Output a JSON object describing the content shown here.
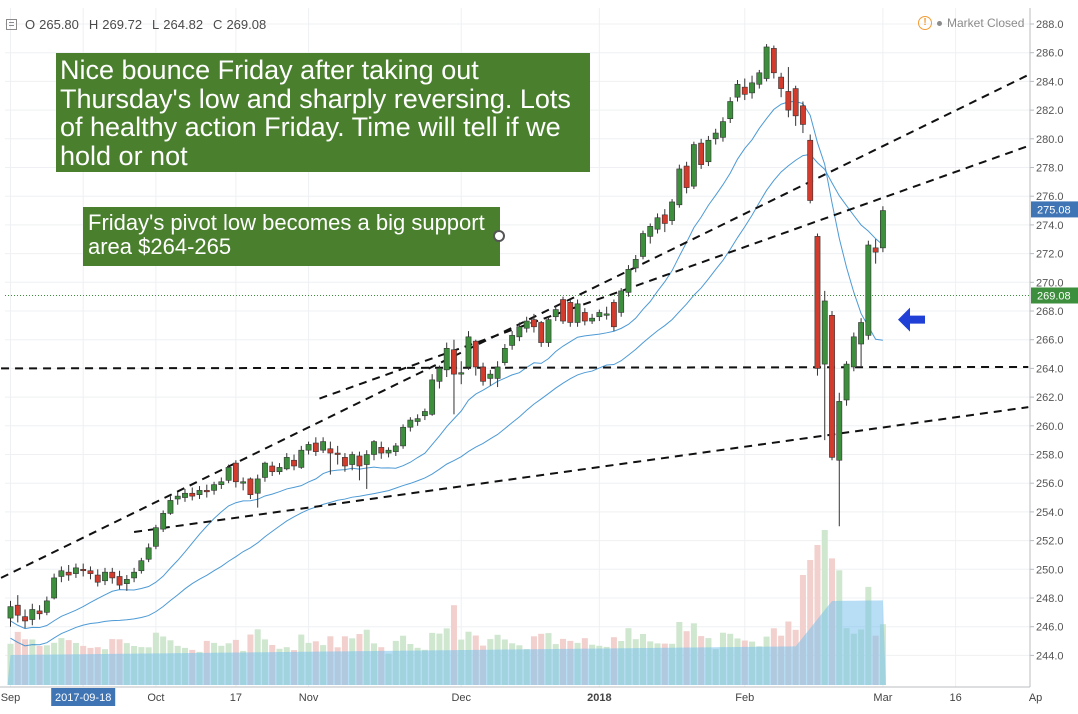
{
  "header": {
    "open_label": "O",
    "open": "265.80",
    "high_label": "H",
    "high": "269.72",
    "low_label": "L",
    "low": "264.82",
    "close_label": "C",
    "close": "269.08",
    "market_status": "Market Closed",
    "status_icon": "warning-icon"
  },
  "annotations": {
    "note1": "Nice bounce Friday after taking out Thursday's low and sharply reversing. Lots of healthy action Friday. Time will tell if we hold or not",
    "note2": "Friday's pivot low becomes a big support area $264-265"
  },
  "colors": {
    "up": "#3d8f3d",
    "down": "#d33b2c",
    "ma": "#3a8fd0",
    "volume_ma": "#7cc3ec",
    "note_bg": "#4a7f2e",
    "price_tag": "#3d8f3d",
    "ma_tag": "#3f74b5",
    "arrow": "#1f3fd6"
  },
  "chart_data": {
    "type": "candlestick",
    "y_axis": {
      "min": 243,
      "max": 288.5,
      "ticks": [
        244,
        246,
        248,
        250,
        252,
        254,
        256,
        258,
        260,
        262,
        264,
        266,
        268,
        270,
        272,
        274,
        276,
        278,
        280,
        282,
        284,
        286,
        288
      ]
    },
    "x_axis": {
      "labels": [
        {
          "label": "Sep",
          "i": 0
        },
        {
          "label": "2017-09-18",
          "i": 10,
          "highlight": true
        },
        {
          "label": "Oct",
          "i": 20
        },
        {
          "label": "17",
          "i": 31
        },
        {
          "label": "Nov",
          "i": 41
        },
        {
          "label": "Dec",
          "i": 62
        },
        {
          "label": "2018",
          "i": 81
        },
        {
          "label": "Feb",
          "i": 101
        },
        {
          "label": "Mar",
          "i": 120
        },
        {
          "label": "16",
          "i": 130
        },
        {
          "label": "Ap",
          "i": 141
        }
      ],
      "n_slots": 143
    },
    "last_price": 269.08,
    "ma_value": 275.08,
    "candles": [
      {
        "o": 246.6,
        "c": 247.4,
        "h": 247.8,
        "l": 246.0
      },
      {
        "o": 247.5,
        "c": 246.8,
        "h": 248.2,
        "l": 246.3
      },
      {
        "o": 246.7,
        "c": 246.4,
        "h": 247.2,
        "l": 245.9
      },
      {
        "o": 246.5,
        "c": 247.2,
        "h": 247.6,
        "l": 246.1
      },
      {
        "o": 247.1,
        "c": 246.9,
        "h": 247.5,
        "l": 246.5
      },
      {
        "o": 247.0,
        "c": 247.8,
        "h": 248.1,
        "l": 246.8
      },
      {
        "o": 248.0,
        "c": 249.4,
        "h": 249.7,
        "l": 247.9
      },
      {
        "o": 249.5,
        "c": 249.9,
        "h": 250.2,
        "l": 249.1
      },
      {
        "o": 249.8,
        "c": 249.6,
        "h": 250.3,
        "l": 249.2
      },
      {
        "o": 249.7,
        "c": 250.1,
        "h": 250.4,
        "l": 249.4
      },
      {
        "o": 250.0,
        "c": 249.9,
        "h": 250.4,
        "l": 249.5
      },
      {
        "o": 249.9,
        "c": 249.7,
        "h": 250.2,
        "l": 249.3
      },
      {
        "o": 249.6,
        "c": 249.1,
        "h": 250.0,
        "l": 248.8
      },
      {
        "o": 249.2,
        "c": 249.8,
        "h": 250.1,
        "l": 248.9
      },
      {
        "o": 249.8,
        "c": 249.4,
        "h": 250.1,
        "l": 249.0
      },
      {
        "o": 249.5,
        "c": 248.9,
        "h": 249.9,
        "l": 248.6
      },
      {
        "o": 249.0,
        "c": 249.3,
        "h": 249.6,
        "l": 248.5
      },
      {
        "o": 249.4,
        "c": 249.8,
        "h": 250.1,
        "l": 249.1
      },
      {
        "o": 249.9,
        "c": 250.6,
        "h": 250.8,
        "l": 249.7
      },
      {
        "o": 250.7,
        "c": 251.5,
        "h": 251.8,
        "l": 250.5
      },
      {
        "o": 251.6,
        "c": 252.9,
        "h": 253.1,
        "l": 251.4
      },
      {
        "o": 252.8,
        "c": 253.9,
        "h": 254.1,
        "l": 252.6
      },
      {
        "o": 253.9,
        "c": 254.8,
        "h": 255.1,
        "l": 253.8
      },
      {
        "o": 254.9,
        "c": 255.1,
        "h": 255.4,
        "l": 254.5
      },
      {
        "o": 255.0,
        "c": 255.3,
        "h": 255.6,
        "l": 254.7
      },
      {
        "o": 255.3,
        "c": 255.1,
        "h": 255.7,
        "l": 254.8
      },
      {
        "o": 255.2,
        "c": 255.5,
        "h": 255.8,
        "l": 254.9
      },
      {
        "o": 255.5,
        "c": 255.4,
        "h": 255.9,
        "l": 255.0
      },
      {
        "o": 255.5,
        "c": 255.9,
        "h": 256.1,
        "l": 255.2
      },
      {
        "o": 255.9,
        "c": 256.1,
        "h": 256.4,
        "l": 255.6
      },
      {
        "o": 256.2,
        "c": 257.1,
        "h": 257.3,
        "l": 256.0
      },
      {
        "o": 257.4,
        "c": 256.1,
        "h": 257.6,
        "l": 255.7
      },
      {
        "o": 256.0,
        "c": 256.1,
        "h": 256.4,
        "l": 255.5
      },
      {
        "o": 256.3,
        "c": 255.2,
        "h": 256.4,
        "l": 254.9
      },
      {
        "o": 255.3,
        "c": 256.3,
        "h": 256.6,
        "l": 254.3
      },
      {
        "o": 256.4,
        "c": 257.4,
        "h": 257.5,
        "l": 256.1
      },
      {
        "o": 257.2,
        "c": 256.8,
        "h": 257.5,
        "l": 256.5
      },
      {
        "o": 256.8,
        "c": 257.1,
        "h": 257.4,
        "l": 256.6
      },
      {
        "o": 257.0,
        "c": 257.8,
        "h": 258.1,
        "l": 256.9
      },
      {
        "o": 257.6,
        "c": 257.2,
        "h": 258.0,
        "l": 256.9
      },
      {
        "o": 257.1,
        "c": 258.3,
        "h": 258.6,
        "l": 257.0
      },
      {
        "o": 258.3,
        "c": 258.7,
        "h": 258.9,
        "l": 258.0
      },
      {
        "o": 258.8,
        "c": 258.2,
        "h": 259.2,
        "l": 257.9
      },
      {
        "o": 258.3,
        "c": 258.9,
        "h": 259.2,
        "l": 258.1
      },
      {
        "o": 258.4,
        "c": 258.1,
        "h": 258.9,
        "l": 256.6
      },
      {
        "o": 258.1,
        "c": 258.0,
        "h": 258.6,
        "l": 257.3
      },
      {
        "o": 257.8,
        "c": 257.2,
        "h": 258.1,
        "l": 256.8
      },
      {
        "o": 257.3,
        "c": 258.0,
        "h": 258.2,
        "l": 256.9
      },
      {
        "o": 257.9,
        "c": 257.2,
        "h": 258.2,
        "l": 256.2
      },
      {
        "o": 257.3,
        "c": 258.0,
        "h": 258.3,
        "l": 255.6
      },
      {
        "o": 258.0,
        "c": 258.9,
        "h": 259.0,
        "l": 257.6
      },
      {
        "o": 258.5,
        "c": 258.1,
        "h": 258.9,
        "l": 257.7
      },
      {
        "o": 258.1,
        "c": 258.3,
        "h": 258.5,
        "l": 257.8
      },
      {
        "o": 258.2,
        "c": 258.6,
        "h": 258.8,
        "l": 257.9
      },
      {
        "o": 258.6,
        "c": 259.9,
        "h": 260.1,
        "l": 258.4
      },
      {
        "o": 259.9,
        "c": 260.4,
        "h": 260.6,
        "l": 259.6
      },
      {
        "o": 260.3,
        "c": 260.5,
        "h": 260.8,
        "l": 260.0
      },
      {
        "o": 260.7,
        "c": 261.0,
        "h": 261.2,
        "l": 260.4
      },
      {
        "o": 260.8,
        "c": 263.2,
        "h": 263.6,
        "l": 260.7
      },
      {
        "o": 263.1,
        "c": 264.0,
        "h": 264.2,
        "l": 262.6
      },
      {
        "o": 263.9,
        "c": 265.4,
        "h": 265.8,
        "l": 263.4
      },
      {
        "o": 265.3,
        "c": 263.6,
        "h": 266.0,
        "l": 260.8
      },
      {
        "o": 263.6,
        "c": 263.7,
        "h": 264.5,
        "l": 262.9
      },
      {
        "o": 264.1,
        "c": 266.2,
        "h": 266.6,
        "l": 263.9
      },
      {
        "o": 265.9,
        "c": 264.1,
        "h": 266.0,
        "l": 263.5
      },
      {
        "o": 264.1,
        "c": 263.1,
        "h": 264.4,
        "l": 262.8
      },
      {
        "o": 263.3,
        "c": 263.6,
        "h": 263.9,
        "l": 262.8
      },
      {
        "o": 263.3,
        "c": 264.1,
        "h": 264.5,
        "l": 262.7
      },
      {
        "o": 264.4,
        "c": 265.4,
        "h": 265.7,
        "l": 264.2
      },
      {
        "o": 265.6,
        "c": 266.3,
        "h": 266.6,
        "l": 265.3
      },
      {
        "o": 266.2,
        "c": 266.9,
        "h": 267.2,
        "l": 265.9
      },
      {
        "o": 266.8,
        "c": 267.3,
        "h": 267.6,
        "l": 266.5
      },
      {
        "o": 267.4,
        "c": 266.9,
        "h": 267.8,
        "l": 266.5
      },
      {
        "o": 267.2,
        "c": 265.8,
        "h": 267.3,
        "l": 265.5
      },
      {
        "o": 265.8,
        "c": 267.4,
        "h": 267.6,
        "l": 265.5
      },
      {
        "o": 267.6,
        "c": 268.1,
        "h": 268.4,
        "l": 267.3
      },
      {
        "o": 268.8,
        "c": 267.3,
        "h": 269.0,
        "l": 267.1
      },
      {
        "o": 268.6,
        "c": 267.2,
        "h": 268.8,
        "l": 266.9
      },
      {
        "o": 267.2,
        "c": 268.5,
        "h": 268.8,
        "l": 266.9
      },
      {
        "o": 267.9,
        "c": 267.3,
        "h": 268.2,
        "l": 267.0
      },
      {
        "o": 267.3,
        "c": 267.5,
        "h": 267.8,
        "l": 267.1
      },
      {
        "o": 267.6,
        "c": 267.9,
        "h": 268.1,
        "l": 267.3
      },
      {
        "o": 267.7,
        "c": 267.8,
        "h": 268.3,
        "l": 267.4
      },
      {
        "o": 268.6,
        "c": 266.9,
        "h": 268.8,
        "l": 266.6
      },
      {
        "o": 267.9,
        "c": 269.4,
        "h": 269.6,
        "l": 267.6
      },
      {
        "o": 269.3,
        "c": 270.9,
        "h": 271.2,
        "l": 269.0
      },
      {
        "o": 271.0,
        "c": 271.6,
        "h": 271.9,
        "l": 270.7
      },
      {
        "o": 271.8,
        "c": 273.4,
        "h": 273.6,
        "l": 271.6
      },
      {
        "o": 273.2,
        "c": 273.9,
        "h": 274.1,
        "l": 272.7
      },
      {
        "o": 273.7,
        "c": 274.5,
        "h": 274.8,
        "l": 273.4
      },
      {
        "o": 274.7,
        "c": 274.1,
        "h": 275.1,
        "l": 273.5
      },
      {
        "o": 274.3,
        "c": 275.6,
        "h": 275.8,
        "l": 274.0
      },
      {
        "o": 275.4,
        "c": 277.9,
        "h": 278.2,
        "l": 275.2
      },
      {
        "o": 278.1,
        "c": 276.6,
        "h": 278.4,
        "l": 276.2
      },
      {
        "o": 276.7,
        "c": 279.6,
        "h": 279.8,
        "l": 276.5
      },
      {
        "o": 279.7,
        "c": 278.2,
        "h": 280.0,
        "l": 277.9
      },
      {
        "o": 278.4,
        "c": 279.9,
        "h": 280.2,
        "l": 278.1
      },
      {
        "o": 280.0,
        "c": 280.4,
        "h": 280.7,
        "l": 279.6
      },
      {
        "o": 280.1,
        "c": 281.2,
        "h": 281.5,
        "l": 279.8
      },
      {
        "o": 281.4,
        "c": 282.6,
        "h": 282.9,
        "l": 281.1
      },
      {
        "o": 282.9,
        "c": 283.8,
        "h": 284.1,
        "l": 282.6
      },
      {
        "o": 283.6,
        "c": 283.1,
        "h": 284.2,
        "l": 282.7
      },
      {
        "o": 283.2,
        "c": 283.9,
        "h": 284.4,
        "l": 282.8
      },
      {
        "o": 283.8,
        "c": 284.6,
        "h": 284.8,
        "l": 283.5
      },
      {
        "o": 284.2,
        "c": 286.4,
        "h": 286.6,
        "l": 284.0
      },
      {
        "o": 286.3,
        "c": 284.6,
        "h": 286.5,
        "l": 284.2
      },
      {
        "o": 284.3,
        "c": 283.5,
        "h": 284.6,
        "l": 282.9
      },
      {
        "o": 283.3,
        "c": 282.0,
        "h": 285.0,
        "l": 281.5
      },
      {
        "o": 283.5,
        "c": 281.6,
        "h": 283.7,
        "l": 280.9
      },
      {
        "o": 282.3,
        "c": 281.0,
        "h": 282.6,
        "l": 280.4
      },
      {
        "o": 279.9,
        "c": 275.7,
        "h": 280.3,
        "l": 275.5
      },
      {
        "o": 273.2,
        "c": 264.0,
        "h": 273.4,
        "l": 263.5
      },
      {
        "o": 264.3,
        "c": 268.7,
        "h": 269.4,
        "l": 259.0
      },
      {
        "o": 267.7,
        "c": 257.8,
        "h": 268.0,
        "l": 257.6
      },
      {
        "o": 257.6,
        "c": 261.7,
        "h": 262.3,
        "l": 253.0
      },
      {
        "o": 261.8,
        "c": 264.3,
        "h": 264.5,
        "l": 261.4
      },
      {
        "o": 264.1,
        "c": 266.2,
        "h": 266.5,
        "l": 263.8
      },
      {
        "o": 265.7,
        "c": 267.2,
        "h": 267.5,
        "l": 264.1
      },
      {
        "o": 266.3,
        "c": 272.6,
        "h": 272.9,
        "l": 266.0
      },
      {
        "o": 272.4,
        "c": 272.1,
        "h": 273.0,
        "l": 271.3
      },
      {
        "o": 272.4,
        "c": 275.0,
        "h": 275.3,
        "l": 272.1
      }
    ]
  }
}
